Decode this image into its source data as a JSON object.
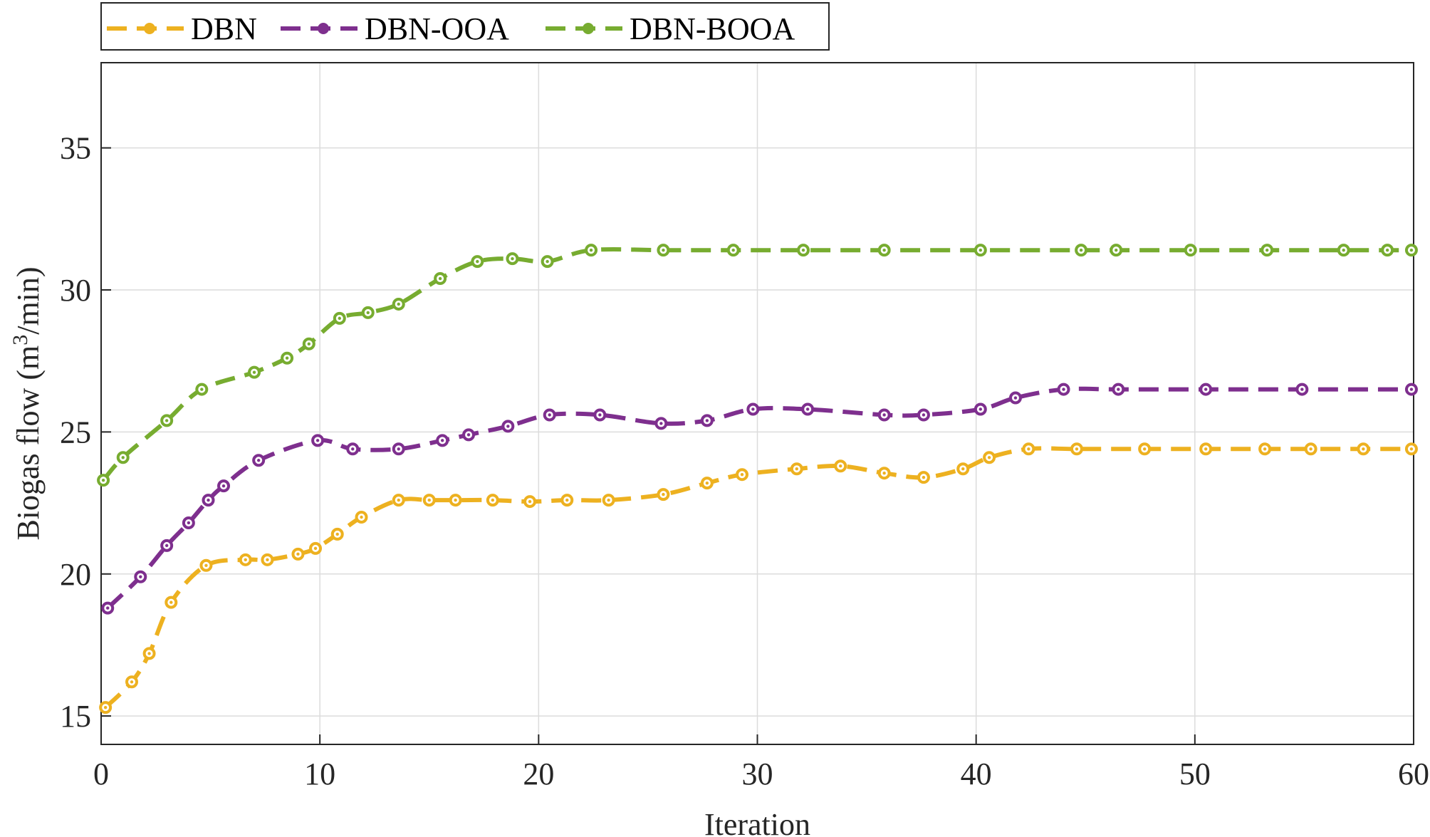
{
  "chart_data": {
    "type": "line",
    "xlabel": "Iteration",
    "ylabel_main": "Biogas flow (m",
    "ylabel_sup": "3",
    "ylabel_tail": "/min)",
    "xlim": [
      0,
      60
    ],
    "ylim": [
      14,
      38
    ],
    "xticks": [
      0,
      10,
      20,
      30,
      40,
      50,
      60
    ],
    "yticks": [
      15,
      20,
      25,
      30,
      35
    ],
    "grid": true,
    "legend_position": "top-left",
    "series": [
      {
        "name": "DBN",
        "color": "#EDB120",
        "points": [
          [
            0.2,
            15.3
          ],
          [
            1.4,
            16.2
          ],
          [
            2.2,
            17.2
          ],
          [
            3.2,
            19.0
          ],
          [
            4.8,
            20.3
          ],
          [
            6.6,
            20.5
          ],
          [
            7.6,
            20.5
          ],
          [
            9.0,
            20.7
          ],
          [
            9.8,
            20.9
          ],
          [
            10.8,
            21.4
          ],
          [
            11.9,
            22.0
          ],
          [
            13.6,
            22.6
          ],
          [
            15.0,
            22.6
          ],
          [
            16.2,
            22.6
          ],
          [
            17.9,
            22.6
          ],
          [
            19.6,
            22.55
          ],
          [
            21.3,
            22.6
          ],
          [
            23.2,
            22.6
          ],
          [
            25.7,
            22.8
          ],
          [
            27.7,
            23.2
          ],
          [
            29.3,
            23.5
          ],
          [
            31.8,
            23.7
          ],
          [
            33.8,
            23.8
          ],
          [
            35.8,
            23.55
          ],
          [
            37.6,
            23.4
          ],
          [
            39.4,
            23.7
          ],
          [
            40.6,
            24.1
          ],
          [
            42.4,
            24.4
          ],
          [
            44.6,
            24.4
          ],
          [
            47.7,
            24.4
          ],
          [
            50.5,
            24.4
          ],
          [
            53.2,
            24.4
          ],
          [
            55.3,
            24.4
          ],
          [
            57.7,
            24.4
          ],
          [
            59.9,
            24.4
          ]
        ]
      },
      {
        "name": "DBN-OOA",
        "color": "#7E2F8E",
        "points": [
          [
            0.3,
            18.8
          ],
          [
            1.8,
            19.9
          ],
          [
            3.0,
            21.0
          ],
          [
            4.0,
            21.8
          ],
          [
            4.9,
            22.6
          ],
          [
            5.6,
            23.1
          ],
          [
            7.2,
            24.0
          ],
          [
            9.9,
            24.7
          ],
          [
            11.5,
            24.4
          ],
          [
            13.6,
            24.4
          ],
          [
            15.6,
            24.7
          ],
          [
            16.8,
            24.9
          ],
          [
            18.6,
            25.2
          ],
          [
            20.5,
            25.6
          ],
          [
            22.8,
            25.6
          ],
          [
            25.6,
            25.3
          ],
          [
            27.7,
            25.4
          ],
          [
            29.8,
            25.8
          ],
          [
            32.3,
            25.8
          ],
          [
            35.8,
            25.6
          ],
          [
            37.6,
            25.6
          ],
          [
            40.2,
            25.8
          ],
          [
            41.8,
            26.2
          ],
          [
            44.0,
            26.5
          ],
          [
            46.5,
            26.5
          ],
          [
            50.5,
            26.5
          ],
          [
            54.9,
            26.5
          ],
          [
            59.9,
            26.5
          ]
        ]
      },
      {
        "name": "DBN-BOOA",
        "color": "#77AC30",
        "points": [
          [
            0.1,
            23.3
          ],
          [
            1.0,
            24.1
          ],
          [
            3.0,
            25.4
          ],
          [
            4.6,
            26.5
          ],
          [
            7.0,
            27.1
          ],
          [
            8.5,
            27.6
          ],
          [
            9.5,
            28.1
          ],
          [
            10.9,
            29.0
          ],
          [
            12.2,
            29.2
          ],
          [
            13.6,
            29.5
          ],
          [
            15.5,
            30.4
          ],
          [
            17.2,
            31.0
          ],
          [
            18.8,
            31.1
          ],
          [
            20.4,
            31.0
          ],
          [
            22.4,
            31.4
          ],
          [
            25.7,
            31.4
          ],
          [
            28.9,
            31.4
          ],
          [
            32.1,
            31.4
          ],
          [
            35.8,
            31.4
          ],
          [
            40.2,
            31.4
          ],
          [
            44.8,
            31.4
          ],
          [
            46.4,
            31.4
          ],
          [
            49.8,
            31.4
          ],
          [
            53.3,
            31.4
          ],
          [
            56.8,
            31.4
          ],
          [
            58.8,
            31.4
          ],
          [
            59.9,
            31.4
          ]
        ]
      }
    ]
  }
}
